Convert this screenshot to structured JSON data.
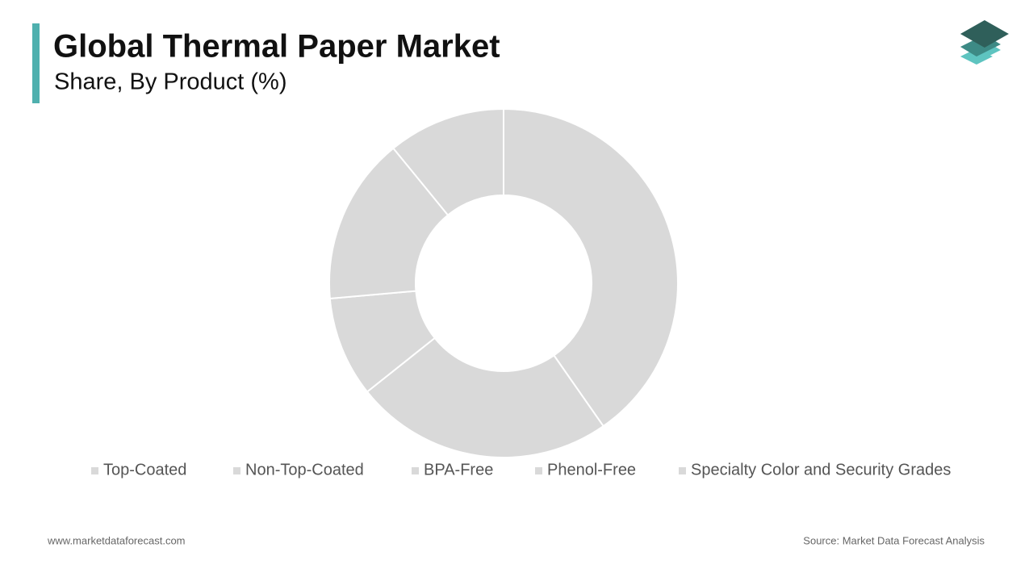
{
  "chart_data": {
    "type": "donut",
    "title": "Global Thermal Paper Market",
    "subtitle": "Share, By Product (%)",
    "categories": [
      "Top-Coated",
      "Non-Top-Coated",
      "BPA-Free",
      "Phenol-Free",
      "Specialty Color and Security Grades"
    ],
    "values": [
      40.3,
      24,
      9.3,
      15.5,
      10.9
    ],
    "colors": [
      "#d9d9d9",
      "#d9d9d9",
      "#d9d9d9",
      "#d9d9d9",
      "#d9d9d9"
    ],
    "legend": "bottom"
  },
  "footer": {
    "website": "www.marketdataforecast.com",
    "source": "Source: Market Data Forecast Analysis"
  }
}
